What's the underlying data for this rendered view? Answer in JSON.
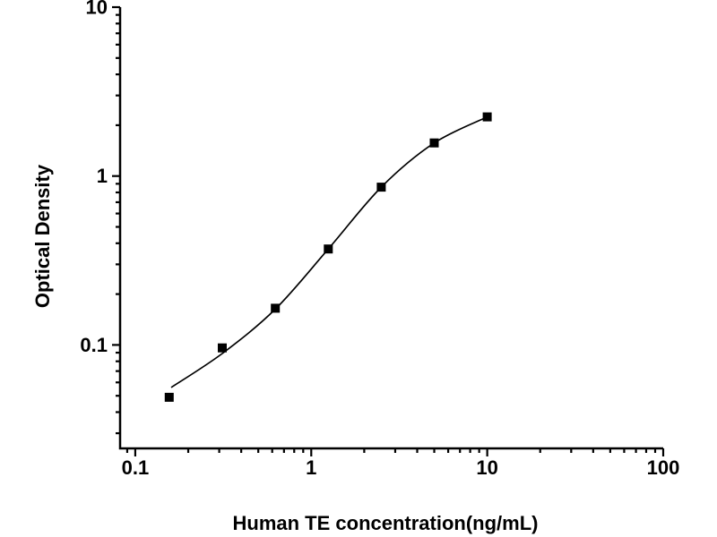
{
  "figure": {
    "background": "#ffffff",
    "description": "ELISA standard curve, log-log scatter plot with fitted sigmoid curve"
  },
  "chart_data": {
    "type": "scatter",
    "title": "",
    "xlabel": "Human TE concentration(ng/mL)",
    "ylabel": "Optical Density",
    "xscale": "log",
    "yscale": "log",
    "xlim": [
      0.082,
      100
    ],
    "ylim": [
      0.0244,
      10
    ],
    "x_ticks": [
      0.1,
      1,
      10,
      100
    ],
    "x_tick_labels": [
      "0.1",
      "1",
      "10",
      "100"
    ],
    "y_ticks": [
      0.1,
      1,
      10
    ],
    "y_tick_labels": [
      "0.1",
      "1",
      "10"
    ],
    "grid": false,
    "legend": "none",
    "marker": "filled-square",
    "marker_size_px": 10,
    "series": [
      {
        "name": "standard-points",
        "points": [
          {
            "x": 0.156,
            "y": 0.049
          },
          {
            "x": 0.312,
            "y": 0.096
          },
          {
            "x": 0.625,
            "y": 0.165
          },
          {
            "x": 1.25,
            "y": 0.37
          },
          {
            "x": 2.5,
            "y": 0.86
          },
          {
            "x": 5,
            "y": 1.57
          },
          {
            "x": 10,
            "y": 2.24
          }
        ]
      }
    ],
    "fit_curve": [
      {
        "x": 0.16,
        "y": 0.056
      },
      {
        "x": 0.312,
        "y": 0.089
      },
      {
        "x": 0.625,
        "y": 0.163
      },
      {
        "x": 1.25,
        "y": 0.37
      },
      {
        "x": 2.5,
        "y": 0.86
      },
      {
        "x": 5,
        "y": 1.57
      },
      {
        "x": 10,
        "y": 2.24
      }
    ],
    "colors": {
      "axis": "#000000",
      "marker": "#000000",
      "curve": "#000000",
      "background": "#ffffff"
    }
  }
}
